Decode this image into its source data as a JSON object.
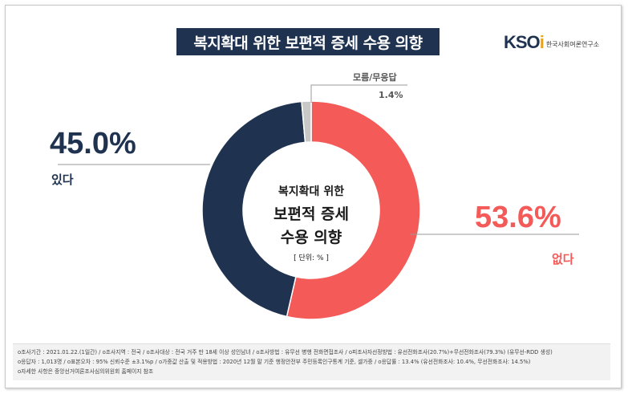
{
  "header": {
    "title": "복지확대 위한 보편적 증세 수용 의향",
    "logo_mark": "KSOI",
    "logo_org": "한국사회여론연구소"
  },
  "center": {
    "line1": "복지확대 위한",
    "line2": "보편적 증세",
    "line3": "수용 의향",
    "unit": "[ 단위: % ]"
  },
  "colors": {
    "yes": "#1f3350",
    "no": "#f35a58",
    "unknown": "#c8c8c8"
  },
  "chart_data": {
    "type": "pie",
    "variant": "donut",
    "unit": "%",
    "slices": [
      {
        "label": "없다",
        "value": 53.6,
        "value_text": "53.6%"
      },
      {
        "label": "있다",
        "value": 45.0,
        "value_text": "45.0%"
      },
      {
        "label": "모름/무응답",
        "value": 1.4,
        "value_text": "1.4%"
      }
    ]
  },
  "footnote": {
    "line1": "ο조사기간 : 2021.01.22.(1일간)  / ο조사지역 : 전국  / ο조사대상 : 전국 거주 만 18세 이상 성인남녀  / ο조사방법 : 유무선 병행 전화면접조사  / ο피조사자선정방법 : 유선전화조사(20.7%)+무선전화조사(79.3%) (유무선-RDD 생성)",
    "line2": "ο응답자 : 1,013명  / ο표본오차 : 95% 신뢰수준 ±3.1%p  / ο가중값 산출 및 적용방법 : 2020년 12월 말 기준 행정안전부 주민등록인구통계 기준, 셀가중  / ο응답률 : 13.4% (유선전화조사: 10.4%, 무선전화조사: 14.5%)",
    "line3": "ο자세한 사항은 중앙선거여론조사심의위원회 홈페이지 참조"
  }
}
